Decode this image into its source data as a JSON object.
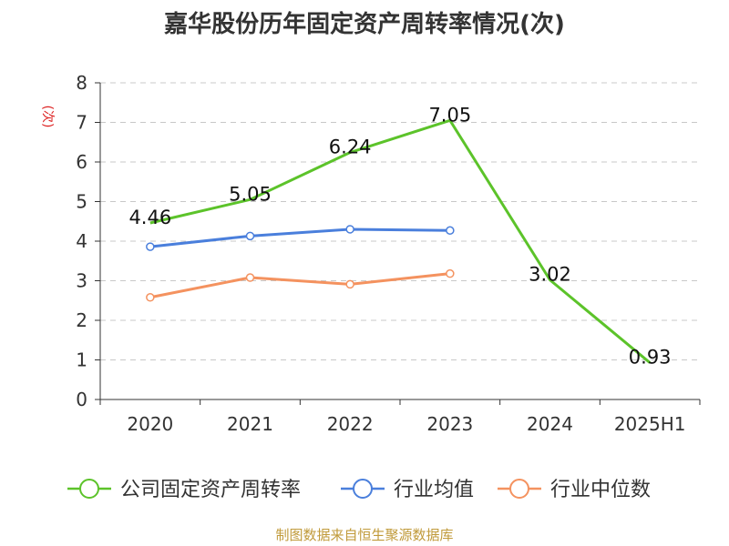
{
  "chart_data": {
    "type": "line",
    "title": "嘉华股份历年固定资产周转率情况(次)",
    "ylabel": "(次)",
    "xlabel": "",
    "categories": [
      "2020",
      "2021",
      "2022",
      "2023",
      "2024",
      "2025H1"
    ],
    "ylim": [
      0,
      8
    ],
    "yticks": [
      0,
      1,
      2,
      3,
      4,
      5,
      6,
      7,
      8
    ],
    "grid": true,
    "legend_position": "bottom",
    "series": [
      {
        "name": "公司固定资产周转率",
        "color": "#5cc32a",
        "values": [
          4.46,
          5.05,
          6.24,
          7.05,
          3.02,
          0.93
        ],
        "labels": [
          "4.46",
          "5.05",
          "6.24",
          "7.05",
          "3.02",
          "0.93"
        ],
        "show_markers": false
      },
      {
        "name": "行业均值",
        "color": "#4a7fdc",
        "values": [
          3.86,
          4.13,
          4.3,
          4.27,
          null,
          null
        ],
        "show_markers": true
      },
      {
        "name": "行业中位数",
        "color": "#f4925f",
        "values": [
          2.58,
          3.08,
          2.91,
          3.18,
          null,
          null
        ],
        "show_markers": true
      }
    ]
  },
  "source": "制图数据来自恒生聚源数据库"
}
